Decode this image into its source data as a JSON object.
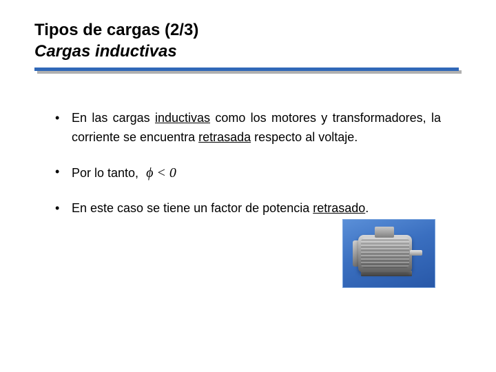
{
  "title": {
    "line1": "Tipos de cargas (2/3)",
    "line2": "Cargas inductivas"
  },
  "divider": {
    "color": "#3068b8",
    "shadow": "#b0b0b0"
  },
  "bullets": [
    {
      "pre": "En las cargas ",
      "u1": "inductivas",
      "mid": " como los motores y transformadores, la corriente se encuentra ",
      "u2": "retrasada",
      "post": " respecto al voltaje."
    },
    {
      "text": "Por lo tanto,",
      "formula": "ϕ < 0"
    },
    {
      "pre": "En este caso se tiene un factor de potencia ",
      "u1": "retrasado",
      "post": "."
    }
  ],
  "image": {
    "name": "electric-motor",
    "bg_gradient": [
      "#5a8fd8",
      "#2858a8"
    ]
  },
  "colors": {
    "text": "#000000",
    "background": "#ffffff"
  }
}
